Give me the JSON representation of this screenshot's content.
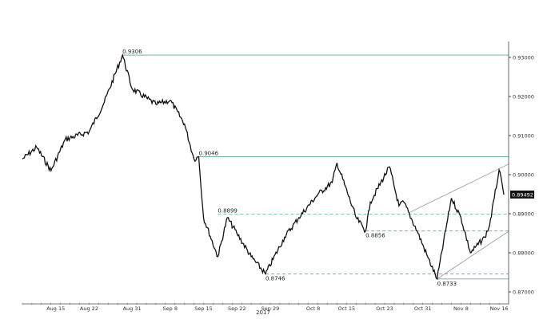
{
  "chart_data": {
    "type": "line",
    "title": "",
    "xlabel": "2017",
    "ylabel": "",
    "ylim": [
      0.866,
      0.9355
    ],
    "xlim": [
      "2017-08-08",
      "2017-11-18"
    ],
    "grid": false,
    "y_ticks": [
      "0.87000",
      "0.88000",
      "0.89000",
      "0.90000",
      "0.91000",
      "0.92000",
      "0.93000"
    ],
    "x_ticks": [
      {
        "date": "2017-08-15",
        "label": "Aug 15"
      },
      {
        "date": "2017-08-22",
        "label": "Aug 22"
      },
      {
        "date": "2017-08-31",
        "label": "Aug 31"
      },
      {
        "date": "2017-09-08",
        "label": "Sep 8"
      },
      {
        "date": "2017-09-15",
        "label": "Sep 15"
      },
      {
        "date": "2017-09-22",
        "label": "Sep 22"
      },
      {
        "date": "2017-09-29",
        "label": "Sep 29"
      },
      {
        "date": "2017-10-08",
        "label": "Oct 8"
      },
      {
        "date": "2017-10-15",
        "label": "Oct 15"
      },
      {
        "date": "2017-10-23",
        "label": "Oct 23"
      },
      {
        "date": "2017-10-31",
        "label": "Oct 31"
      },
      {
        "date": "2017-11-08",
        "label": "Nov 8"
      },
      {
        "date": "2017-11-16",
        "label": "Nov 16"
      }
    ],
    "last_price": "0.89492",
    "series": [
      {
        "color": "#111111",
        "points": [
          [
            "2017-08-08",
            0.904
          ],
          [
            "2017-08-11",
            0.907
          ],
          [
            "2017-08-14",
            0.901
          ],
          [
            "2017-08-17",
            0.909
          ],
          [
            "2017-08-22",
            0.911
          ],
          [
            "2017-08-25",
            0.918
          ],
          [
            "2017-08-29",
            0.9306
          ],
          [
            "2017-08-31",
            0.922
          ],
          [
            "2017-09-05",
            0.918
          ],
          [
            "2017-09-08",
            0.919
          ],
          [
            "2017-09-11",
            0.913
          ],
          [
            "2017-09-13",
            0.904
          ],
          [
            "2017-09-14",
            0.9046
          ],
          [
            "2017-09-15",
            0.889
          ],
          [
            "2017-09-18",
            0.879
          ],
          [
            "2017-09-20",
            0.889
          ],
          [
            "2017-09-22",
            0.885
          ],
          [
            "2017-09-25",
            0.879
          ],
          [
            "2017-09-28",
            0.8746
          ],
          [
            "2017-10-02",
            0.884
          ],
          [
            "2017-10-05",
            0.889
          ],
          [
            "2017-10-09",
            0.895
          ],
          [
            "2017-10-12",
            0.898
          ],
          [
            "2017-10-13",
            0.903
          ],
          [
            "2017-10-17",
            0.889
          ],
          [
            "2017-10-19",
            0.8856
          ],
          [
            "2017-10-20",
            0.893
          ],
          [
            "2017-10-24",
            0.902
          ],
          [
            "2017-10-26",
            0.892
          ],
          [
            "2017-10-27",
            0.893
          ],
          [
            "2017-10-30",
            0.885
          ],
          [
            "2017-11-01",
            0.879
          ],
          [
            "2017-11-03",
            0.8733
          ],
          [
            "2017-11-06",
            0.894
          ],
          [
            "2017-11-08",
            0.889
          ],
          [
            "2017-11-10",
            0.88
          ],
          [
            "2017-11-13",
            0.884
          ],
          [
            "2017-11-14",
            0.887
          ],
          [
            "2017-11-15",
            0.894
          ],
          [
            "2017-11-16",
            0.9012
          ],
          [
            "2017-11-17",
            0.8949
          ]
        ]
      }
    ],
    "levels": [
      {
        "value": 0.9306,
        "label": "0.9306",
        "style": "solid",
        "from": "2017-08-29"
      },
      {
        "value": 0.9046,
        "label": "0.9046",
        "style": "solid",
        "from": "2017-09-14"
      },
      {
        "value": 0.8899,
        "label": "0.8899",
        "style": "dashed",
        "from": "2017-09-18"
      },
      {
        "value": 0.8856,
        "label": "0.8856",
        "style": "dashed",
        "from": "2017-10-19"
      },
      {
        "value": 0.8746,
        "label": "0.8746",
        "style": "dashed",
        "from": "2017-09-28"
      },
      {
        "value": 0.8733,
        "label": "0.8733",
        "style": "solid",
        "from": "2017-11-03"
      }
    ],
    "channel": [
      {
        "from": [
          "2017-10-28",
          0.8902
        ],
        "to": [
          "2017-11-18",
          0.9027
        ]
      },
      {
        "from": [
          "2017-11-03",
          0.8733
        ],
        "to": [
          "2017-11-18",
          0.8855
        ]
      }
    ],
    "level_color": "#5aaea0"
  }
}
